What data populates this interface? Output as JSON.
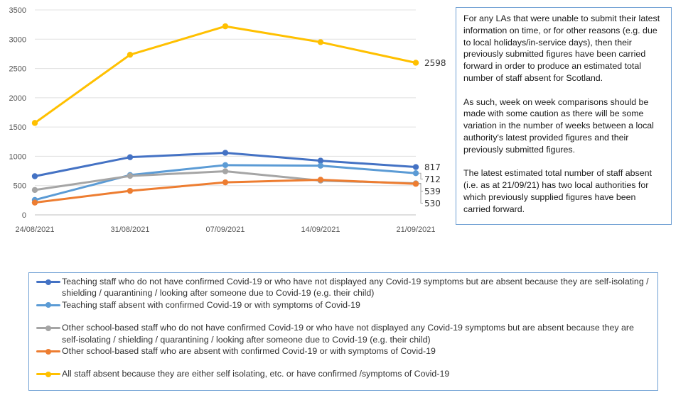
{
  "chart_data": {
    "type": "line",
    "categories": [
      "24/08/2021",
      "31/08/2021",
      "07/09/2021",
      "14/09/2021",
      "21/09/2021"
    ],
    "ylim": [
      0,
      3500
    ],
    "yticks": [
      0,
      500,
      1000,
      1500,
      2000,
      2500,
      3000,
      3500
    ],
    "grid": true,
    "legend_placement": "bottom",
    "series": [
      {
        "name": "Teaching staff who do not have confirmed Covid-19 or who have not displayed any Covid-19 symptoms but are absent because they are self-isolating / shielding / quarantining / looking after someone due to Covid-19 (e.g. their child)",
        "color": "#4472c4",
        "values": [
          660,
          985,
          1060,
          925,
          817
        ],
        "end_label": "817"
      },
      {
        "name": "Teaching staff absent with confirmed Covid-19 or with symptoms of Covid-19",
        "color": "#5b9bd5",
        "values": [
          255,
          680,
          850,
          840,
          712
        ],
        "end_label": "712"
      },
      {
        "name": "Other school-based staff who do not have confirmed Covid-19 or who have not displayed any Covid-19 symptoms but are absent because they are self-isolating / shielding / quarantining / looking after someone due to Covid-19 (e.g. their child)",
        "color": "#a5a5a5",
        "values": [
          425,
          665,
          745,
          585,
          539
        ],
        "end_label": "539"
      },
      {
        "name": "Other school-based staff who are absent with confirmed Covid-19 or with symptoms of Covid-19",
        "color": "#ed7d31",
        "values": [
          210,
          410,
          555,
          600,
          530
        ],
        "end_label": "530"
      },
      {
        "name": "All staff absent because they are either self isolating, etc. or have confirmed /symptoms of Covid-19",
        "color": "#ffc000",
        "values": [
          1570,
          2735,
          3220,
          2950,
          2598
        ],
        "end_label": "2598"
      }
    ]
  },
  "note": {
    "paragraphs": [
      "For any LAs that were unable to submit their latest information on time, or for other reasons (e.g. due to local holidays/in-service days), then their previously submitted figures have been carried forward in order to produce an estimated total number of staff absent for Scotland.",
      "As such, week on week comparisons should be made with some caution as there will be some variation in the number of weeks between a local authority's latest provided figures and their previously submitted figures.",
      "The latest estimated total number of staff absent (i.e. as at 21/09/21) has two local authorities for which previously supplied figures have been carried forward."
    ]
  }
}
